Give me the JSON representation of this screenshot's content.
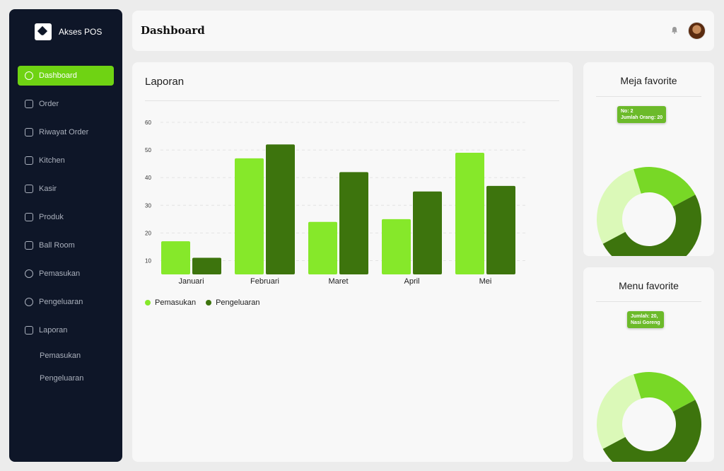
{
  "app": {
    "name": "Akses POS"
  },
  "sidebar": {
    "items": [
      {
        "label": "Dashboard",
        "icon": "home-icon",
        "active": true
      },
      {
        "label": "Order",
        "icon": "cart-icon"
      },
      {
        "label": "Riwayat Order",
        "icon": "history-icon"
      },
      {
        "label": "Kitchen",
        "icon": "kitchen-icon"
      },
      {
        "label": "Kasir",
        "icon": "cashier-icon"
      },
      {
        "label": "Produk",
        "icon": "product-icon"
      },
      {
        "label": "Ball Room",
        "icon": "calendar-icon"
      },
      {
        "label": "Pemasukan",
        "icon": "money-in-icon"
      },
      {
        "label": "Pengeluaran",
        "icon": "money-out-icon"
      },
      {
        "label": "Laporan",
        "icon": "report-icon"
      }
    ],
    "sub_items": [
      {
        "label": "Pemasukan"
      },
      {
        "label": "Pengeluaran"
      }
    ]
  },
  "header": {
    "title": "Dashboard",
    "notification_icon": "bell-icon",
    "avatar": "user-avatar"
  },
  "report": {
    "title": "Laporan",
    "legend": [
      {
        "label": "Pemasukan"
      },
      {
        "label": "Pengeluaran"
      }
    ]
  },
  "chart_data": {
    "type": "bar",
    "categories": [
      "Januari",
      "Februari",
      "Maret",
      "April",
      "Mei"
    ],
    "series": [
      {
        "name": "Pemasukan",
        "values": [
          17,
          47,
          24,
          25,
          49
        ],
        "color": "#86e82a"
      },
      {
        "name": "Pengeluaran",
        "values": [
          11,
          52,
          42,
          35,
          37
        ],
        "color": "#3d740d"
      }
    ],
    "y_ticks": [
      10,
      20,
      30,
      40,
      50,
      60
    ],
    "ylim": [
      5,
      60
    ],
    "grid": true,
    "legend_position": "bottom-left"
  },
  "fav_tables": {
    "title": "Meja favorite",
    "tooltip_line1": "No: 2",
    "tooltip_line2": "Jumlah Orang:  20",
    "segments": [
      {
        "value": 50,
        "color": "#3d740d"
      },
      {
        "value": 28,
        "color": "#dbf9b8"
      },
      {
        "value": 22,
        "color": "#78d826"
      }
    ]
  },
  "fav_menu": {
    "title": "Menu favorite",
    "tooltip_line1": "Jumlah: 20,",
    "tooltip_line2": "Nasi Goreng",
    "segments": [
      {
        "value": 50,
        "color": "#3d740d"
      },
      {
        "value": 28,
        "color": "#dbf9b8"
      },
      {
        "value": 22,
        "color": "#78d826"
      }
    ]
  }
}
